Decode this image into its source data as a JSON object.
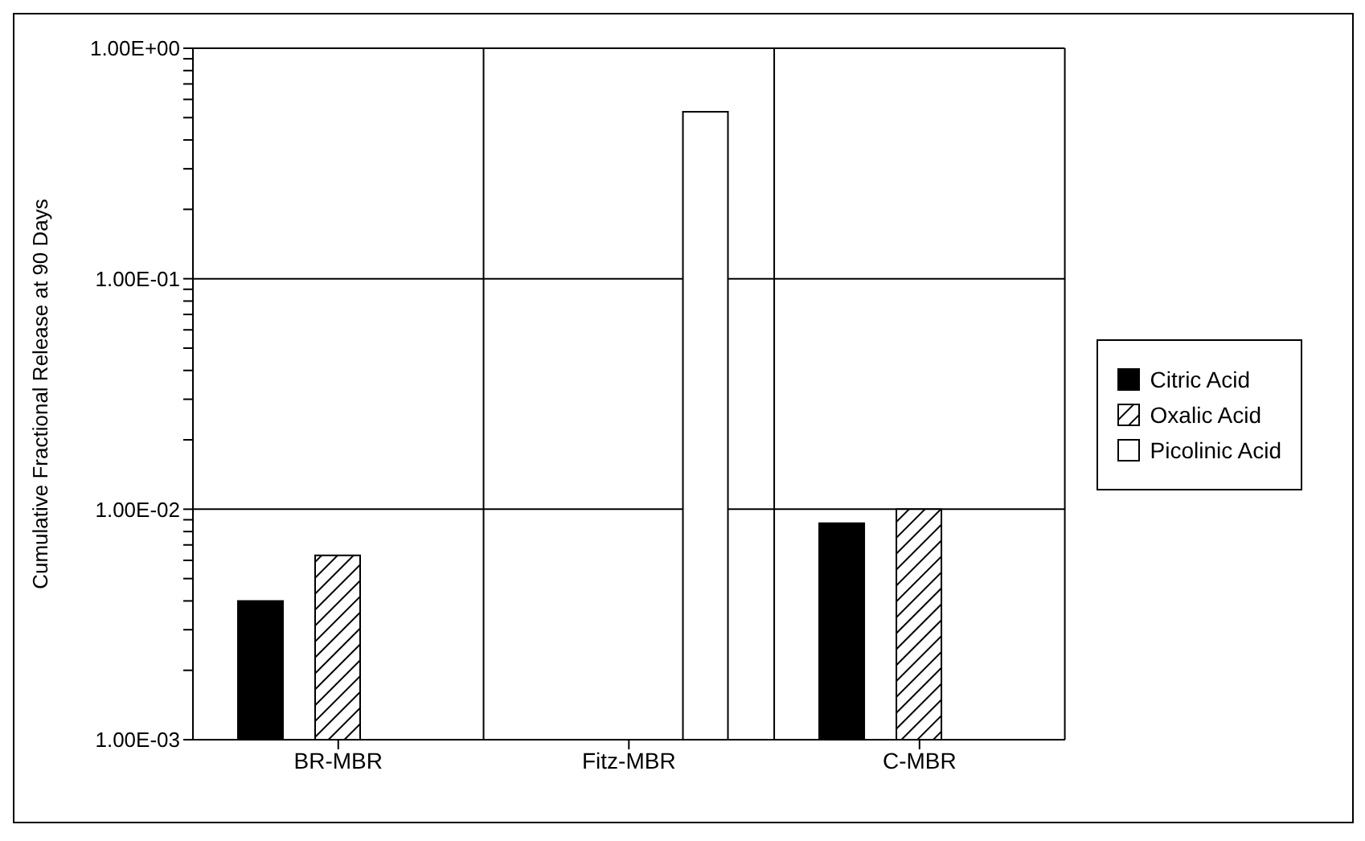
{
  "chart_data": {
    "type": "bar",
    "ylabel": "Cumulative Fractional Release at 90 Days",
    "categories": [
      "BR-MBR",
      "Fitz-MBR",
      "C-MBR"
    ],
    "series": [
      {
        "name": "Citric Acid",
        "color": "#000000",
        "values": [
          0.004,
          null,
          0.0087
        ]
      },
      {
        "name": "Oxalic Acid",
        "color": "#000000",
        "values": [
          0.0063,
          null,
          0.01
        ]
      },
      {
        "name": "Picolinic Acid",
        "color": "#ffffff",
        "values": [
          null,
          0.53,
          null
        ]
      }
    ],
    "log": true,
    "ylim": [
      0.001,
      1
    ],
    "yticks": [
      {
        "value": 0.001,
        "label": "1.00E-03"
      },
      {
        "value": 0.002,
        "label": null
      },
      {
        "value": 0.003,
        "label": null
      },
      {
        "value": 0.004,
        "label": null
      },
      {
        "value": 0.005,
        "label": null
      },
      {
        "value": 0.006,
        "label": null
      },
      {
        "value": 0.007,
        "label": null
      },
      {
        "value": 0.008,
        "label": null
      },
      {
        "value": 0.009,
        "label": null
      },
      {
        "value": 0.01,
        "label": "1.00E-02"
      },
      {
        "value": 0.02,
        "label": null
      },
      {
        "value": 0.03,
        "label": null
      },
      {
        "value": 0.04,
        "label": null
      },
      {
        "value": 0.05,
        "label": null
      },
      {
        "value": 0.06,
        "label": null
      },
      {
        "value": 0.07,
        "label": null
      },
      {
        "value": 0.08,
        "label": null
      },
      {
        "value": 0.09,
        "label": null
      },
      {
        "value": 0.1,
        "label": "1.00E-01"
      },
      {
        "value": 0.2,
        "label": null
      },
      {
        "value": 0.3,
        "label": null
      },
      {
        "value": 0.4,
        "label": null
      },
      {
        "value": 0.5,
        "label": null
      },
      {
        "value": 0.6,
        "label": null
      },
      {
        "value": 0.7,
        "label": null
      },
      {
        "value": 0.8,
        "label": null
      },
      {
        "value": 0.9,
        "label": null
      },
      {
        "value": 1,
        "label": "1.00E+00"
      }
    ],
    "grid": true,
    "legend": "right"
  }
}
